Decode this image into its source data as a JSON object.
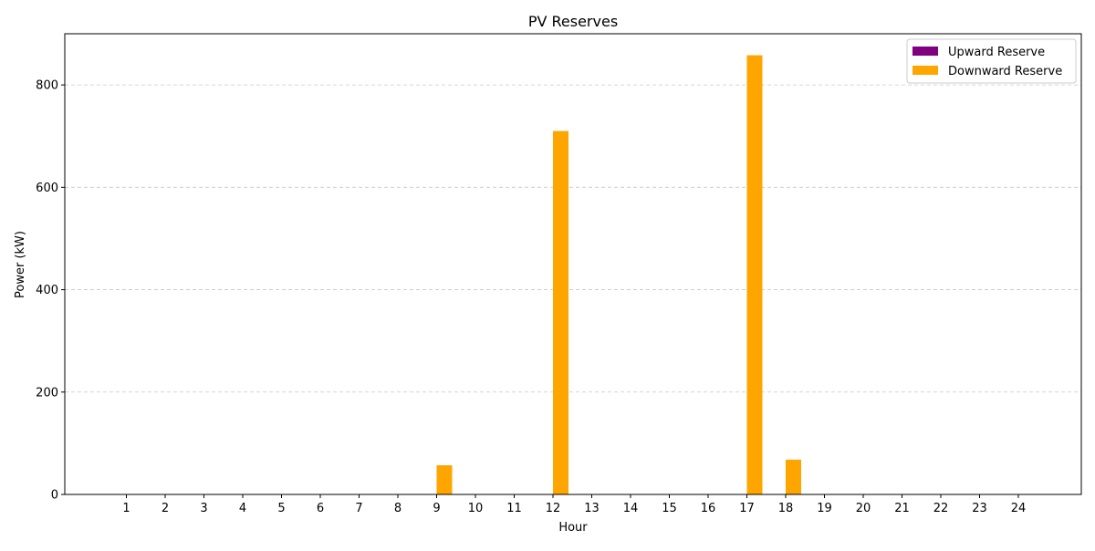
{
  "chart_data": {
    "type": "bar",
    "title": "PV Reserves",
    "xlabel": "Hour",
    "ylabel": "Power (kW)",
    "ylim": [
      0,
      900
    ],
    "yticks": [
      0,
      200,
      400,
      600,
      800
    ],
    "grid": "y-dashed",
    "legend_position": "top-right",
    "categories": [
      "1",
      "2",
      "3",
      "4",
      "5",
      "6",
      "7",
      "8",
      "9",
      "10",
      "11",
      "12",
      "13",
      "14",
      "15",
      "16",
      "17",
      "18",
      "19",
      "20",
      "21",
      "22",
      "23",
      "24"
    ],
    "series": [
      {
        "name": "Upward Reserve",
        "color": "#800080",
        "values": [
          0,
          0,
          0,
          0,
          0,
          0,
          0,
          0,
          0,
          0,
          0,
          0,
          0,
          0,
          0,
          0,
          0,
          0,
          0,
          0,
          0,
          0,
          0,
          0
        ]
      },
      {
        "name": "Downward Reserve",
        "color": "#FFA500",
        "values": [
          0,
          0,
          0,
          0,
          0,
          0,
          0,
          0,
          57,
          0,
          0,
          710,
          0,
          0,
          0,
          0,
          858,
          68,
          0,
          0,
          0,
          0,
          0,
          0
        ]
      }
    ]
  }
}
